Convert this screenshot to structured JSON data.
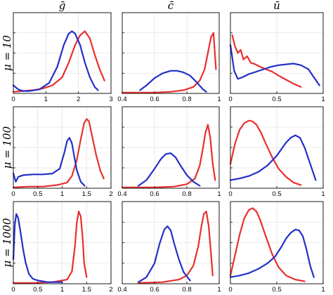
{
  "chart_data": {
    "type": "line",
    "layout": "grid 3x3",
    "colors": {
      "red": "#e8302e",
      "blue": "#2230c8"
    },
    "columns": [
      {
        "title": "ḡ"
      },
      {
        "title": "c̄"
      },
      {
        "title": "ū"
      }
    ],
    "rows": [
      {
        "label": "μ = 10"
      },
      {
        "label": "μ = 100"
      },
      {
        "label": "μ = 1000"
      }
    ],
    "panels": [
      {
        "row": 0,
        "col": 0,
        "xlim": [
          0,
          3
        ],
        "ylim": [
          0,
          1
        ],
        "grid": true,
        "xticks": [
          0,
          1,
          2,
          3
        ],
        "xtick_labels": [
          "0",
          "1",
          "2",
          "3"
        ],
        "series": [
          {
            "color": "red",
            "x": [
              0.0,
              0.3,
              0.6,
              0.9,
              1.2,
              1.5,
              1.7,
              1.9,
              2.05,
              2.2,
              2.35,
              2.5,
              2.65,
              2.8
            ],
            "y": [
              0.02,
              0.03,
              0.04,
              0.06,
              0.1,
              0.2,
              0.38,
              0.6,
              0.72,
              0.77,
              0.68,
              0.48,
              0.3,
              0.16
            ]
          },
          {
            "color": "blue",
            "x": [
              0.0,
              0.15,
              0.3,
              0.5,
              0.8,
              1.1,
              1.35,
              1.55,
              1.7,
              1.8,
              1.9,
              2.05,
              2.2,
              2.35,
              2.5,
              2.6
            ],
            "y": [
              0.1,
              0.05,
              0.03,
              0.03,
              0.05,
              0.13,
              0.33,
              0.6,
              0.74,
              0.77,
              0.74,
              0.6,
              0.38,
              0.2,
              0.08,
              0.04
            ]
          }
        ]
      },
      {
        "row": 0,
        "col": 1,
        "xlim": [
          0.4,
          1.0
        ],
        "ylim": [
          0,
          1
        ],
        "grid": true,
        "xticks": [
          0.4,
          0.6,
          0.8,
          1.0
        ],
        "xtick_labels": [
          "0.4",
          "0.6",
          "0.8",
          "1"
        ],
        "series": [
          {
            "color": "red",
            "x": [
              0.4,
              0.5,
              0.6,
              0.7,
              0.78,
              0.84,
              0.88,
              0.91,
              0.93,
              0.95,
              0.965,
              0.98
            ],
            "y": [
              0.01,
              0.01,
              0.01,
              0.02,
              0.04,
              0.08,
              0.16,
              0.3,
              0.5,
              0.7,
              0.75,
              0.3
            ]
          },
          {
            "color": "blue",
            "x": [
              0.51,
              0.55,
              0.6,
              0.65,
              0.7,
              0.74,
              0.78,
              0.82,
              0.86,
              0.9,
              0.92
            ],
            "y": [
              0.04,
              0.1,
              0.19,
              0.25,
              0.28,
              0.28,
              0.26,
              0.22,
              0.14,
              0.05,
              0.02
            ]
          }
        ]
      },
      {
        "row": 0,
        "col": 2,
        "xlim": [
          0,
          1
        ],
        "ylim": [
          0,
          1
        ],
        "grid": true,
        "xticks": [
          0,
          0.5,
          1
        ],
        "xtick_labels": [
          "0",
          "0.5",
          "1"
        ],
        "series": [
          {
            "color": "red",
            "x": [
              0.02,
              0.05,
              0.08,
              0.11,
              0.14,
              0.18,
              0.22,
              0.27,
              0.32,
              0.38,
              0.45,
              0.52,
              0.6,
              0.68,
              0.76
            ],
            "y": [
              0.72,
              0.58,
              0.5,
              0.54,
              0.42,
              0.46,
              0.38,
              0.36,
              0.33,
              0.3,
              0.27,
              0.22,
              0.17,
              0.12,
              0.08
            ]
          },
          {
            "color": "blue",
            "x": [
              0.0,
              0.04,
              0.08,
              0.13,
              0.2,
              0.28,
              0.36,
              0.44,
              0.52,
              0.6,
              0.68,
              0.76,
              0.84,
              0.9,
              0.96
            ],
            "y": [
              0.6,
              0.28,
              0.18,
              0.2,
              0.24,
              0.27,
              0.3,
              0.33,
              0.35,
              0.36,
              0.37,
              0.35,
              0.3,
              0.2,
              0.1
            ]
          }
        ]
      },
      {
        "row": 1,
        "col": 0,
        "xlim": [
          0,
          2
        ],
        "ylim": [
          0,
          1
        ],
        "grid": true,
        "xticks": [
          0,
          0.5,
          1,
          1.5,
          2
        ],
        "xtick_labels": [
          "0",
          "0.5",
          "1",
          "1.5",
          "2"
        ],
        "series": [
          {
            "color": "red",
            "x": [
              0.0,
              0.3,
              0.6,
              0.9,
              1.1,
              1.2,
              1.3,
              1.38,
              1.45,
              1.5,
              1.55,
              1.62,
              1.7,
              1.78,
              1.85
            ],
            "y": [
              0.01,
              0.02,
              0.02,
              0.04,
              0.07,
              0.15,
              0.35,
              0.6,
              0.8,
              0.85,
              0.82,
              0.62,
              0.4,
              0.22,
              0.12
            ]
          },
          {
            "color": "blue",
            "x": [
              0.0,
              0.05,
              0.1,
              0.2,
              0.4,
              0.6,
              0.8,
              0.95,
              1.05,
              1.1,
              1.15,
              1.2,
              1.25,
              1.3,
              1.38,
              1.46
            ],
            "y": [
              0.18,
              0.08,
              0.14,
              0.16,
              0.17,
              0.17,
              0.18,
              0.24,
              0.45,
              0.58,
              0.62,
              0.55,
              0.38,
              0.22,
              0.08,
              0.03
            ]
          }
        ]
      },
      {
        "row": 1,
        "col": 1,
        "xlim": [
          0.4,
          1.0
        ],
        "ylim": [
          0,
          1
        ],
        "grid": true,
        "xticks": [
          0.4,
          0.6,
          0.8,
          1.0
        ],
        "xtick_labels": [
          "0.4",
          "0.6",
          "0.8",
          "1"
        ],
        "series": [
          {
            "color": "red",
            "x": [
              0.4,
              0.6,
              0.72,
              0.8,
              0.85,
              0.88,
              0.9,
              0.915,
              0.93,
              0.945,
              0.96,
              0.975
            ],
            "y": [
              0.01,
              0.01,
              0.02,
              0.05,
              0.12,
              0.28,
              0.5,
              0.68,
              0.78,
              0.62,
              0.3,
              0.1
            ]
          },
          {
            "color": "blue",
            "x": [
              0.5,
              0.55,
              0.6,
              0.64,
              0.67,
              0.7,
              0.73,
              0.76,
              0.8,
              0.84,
              0.88
            ],
            "y": [
              0.03,
              0.1,
              0.24,
              0.36,
              0.42,
              0.43,
              0.38,
              0.28,
              0.16,
              0.08,
              0.03
            ]
          }
        ]
      },
      {
        "row": 1,
        "col": 2,
        "xlim": [
          0,
          1
        ],
        "ylim": [
          0,
          1
        ],
        "grid": true,
        "xticks": [
          0,
          0.5,
          1
        ],
        "xtick_labels": [
          "0",
          "0.5",
          "1"
        ],
        "series": [
          {
            "color": "red",
            "x": [
              0.0,
              0.05,
              0.1,
              0.15,
              0.2,
              0.24,
              0.28,
              0.33,
              0.38,
              0.45,
              0.52,
              0.6,
              0.68,
              0.76
            ],
            "y": [
              0.3,
              0.55,
              0.72,
              0.8,
              0.83,
              0.82,
              0.78,
              0.68,
              0.55,
              0.38,
              0.24,
              0.14,
              0.07,
              0.04
            ]
          },
          {
            "color": "blue",
            "x": [
              0.0,
              0.1,
              0.2,
              0.3,
              0.4,
              0.5,
              0.55,
              0.6,
              0.65,
              0.7,
              0.75,
              0.8,
              0.86,
              0.92
            ],
            "y": [
              0.1,
              0.12,
              0.15,
              0.2,
              0.28,
              0.4,
              0.48,
              0.56,
              0.62,
              0.65,
              0.62,
              0.5,
              0.3,
              0.1
            ]
          }
        ]
      },
      {
        "row": 2,
        "col": 0,
        "xlim": [
          0,
          2
        ],
        "ylim": [
          0,
          1
        ],
        "grid": true,
        "xticks": [
          0,
          0.5,
          1,
          1.5,
          2
        ],
        "xtick_labels": [
          "0",
          "0.5",
          "1",
          "1.5",
          "2"
        ],
        "series": [
          {
            "color": "red",
            "x": [
              0.0,
              0.4,
              0.8,
              1.1,
              1.2,
              1.26,
              1.3,
              1.34,
              1.38,
              1.42,
              1.45,
              1.5
            ],
            "y": [
              0.01,
              0.01,
              0.02,
              0.05,
              0.15,
              0.45,
              0.75,
              0.88,
              0.82,
              0.55,
              0.25,
              0.08
            ]
          },
          {
            "color": "blue",
            "x": [
              0.0,
              0.03,
              0.06,
              0.1,
              0.15,
              0.2,
              0.25,
              0.32,
              0.4,
              0.5,
              0.6,
              0.7,
              0.85,
              1.0
            ],
            "y": [
              0.3,
              0.72,
              0.85,
              0.8,
              0.62,
              0.42,
              0.26,
              0.12,
              0.06,
              0.04,
              0.03,
              0.02,
              0.02,
              0.02
            ]
          }
        ]
      },
      {
        "row": 2,
        "col": 1,
        "xlim": [
          0.4,
          1.0
        ],
        "ylim": [
          0,
          1
        ],
        "grid": true,
        "xticks": [
          0.4,
          0.6,
          0.8,
          1.0
        ],
        "xtick_labels": [
          "0.4",
          "0.6",
          "0.8",
          "1"
        ],
        "series": [
          {
            "color": "red",
            "x": [
              0.5,
              0.65,
              0.75,
              0.8,
              0.84,
              0.87,
              0.89,
              0.905,
              0.92,
              0.935,
              0.95,
              0.96
            ],
            "y": [
              0.01,
              0.02,
              0.05,
              0.1,
              0.22,
              0.45,
              0.7,
              0.85,
              0.88,
              0.7,
              0.35,
              0.1
            ]
          },
          {
            "color": "blue",
            "x": [
              0.5,
              0.55,
              0.6,
              0.63,
              0.66,
              0.68,
              0.7,
              0.72,
              0.75,
              0.78,
              0.82
            ],
            "y": [
              0.02,
              0.08,
              0.25,
              0.48,
              0.66,
              0.7,
              0.65,
              0.5,
              0.3,
              0.14,
              0.04
            ]
          }
        ]
      },
      {
        "row": 2,
        "col": 2,
        "xlim": [
          0,
          1
        ],
        "ylim": [
          0,
          1
        ],
        "grid": true,
        "xticks": [
          0,
          0.5,
          1
        ],
        "xtick_labels": [
          "0",
          "0.5",
          "1"
        ],
        "series": [
          {
            "color": "red",
            "x": [
              0.0,
              0.05,
              0.1,
              0.15,
              0.2,
              0.24,
              0.28,
              0.32,
              0.38,
              0.45,
              0.52,
              0.6,
              0.7,
              0.8
            ],
            "y": [
              0.1,
              0.35,
              0.6,
              0.8,
              0.9,
              0.92,
              0.88,
              0.78,
              0.58,
              0.36,
              0.2,
              0.1,
              0.05,
              0.03
            ]
          },
          {
            "color": "blue",
            "x": [
              0.0,
              0.1,
              0.2,
              0.3,
              0.4,
              0.48,
              0.55,
              0.6,
              0.65,
              0.7,
              0.74,
              0.78,
              0.82,
              0.86,
              0.9
            ],
            "y": [
              0.08,
              0.1,
              0.13,
              0.18,
              0.25,
              0.33,
              0.45,
              0.55,
              0.62,
              0.66,
              0.65,
              0.58,
              0.42,
              0.22,
              0.08
            ]
          }
        ]
      }
    ]
  }
}
